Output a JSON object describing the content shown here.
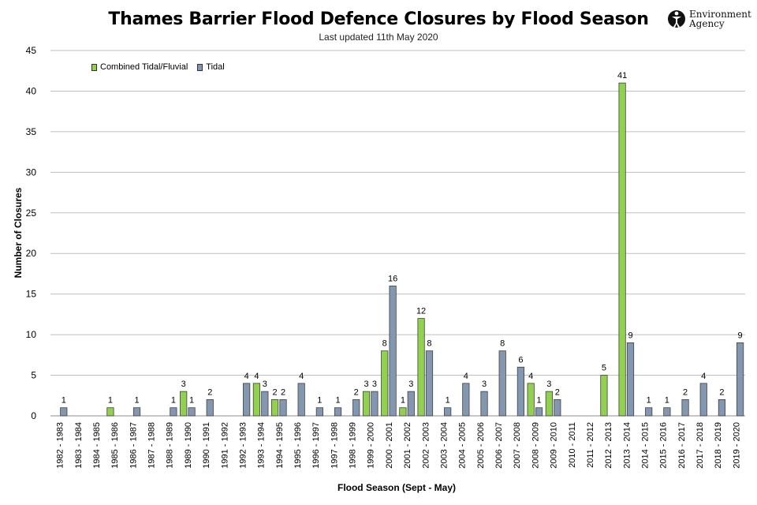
{
  "title": "Thames Barrier Flood Defence Closures by Flood Season",
  "subtitle": "Last updated  11th May 2020",
  "logo": {
    "line1": "Environment",
    "line2": "Agency"
  },
  "colors": {
    "combined": "#92d050",
    "tidal": "#8497b0",
    "grid": "#bfbfbf"
  },
  "chart_data": {
    "type": "bar",
    "xlabel": "Flood Season (Sept - May)",
    "ylabel": "Number of Closures",
    "ylim": [
      0,
      45
    ],
    "yticks": [
      0,
      5,
      10,
      15,
      20,
      25,
      30,
      35,
      40,
      45
    ],
    "grid": true,
    "legend": "top-left",
    "categories": [
      "1982 - 1983",
      "1983 - 1984",
      "1984 - 1985",
      "1985 - 1986",
      "1986 - 1987",
      "1987 - 1988",
      "1988 - 1989",
      "1989 - 1990",
      "1990 - 1991",
      "1991 - 1992",
      "1992 - 1993",
      "1993 - 1994",
      "1994 - 1995",
      "1995 - 1996",
      "1996 - 1997",
      "1997 - 1998",
      "1998 - 1999",
      "1999 - 2000",
      "2000 - 2001",
      "2001 - 2002",
      "2002 - 2003",
      "2003 - 2004",
      "2004 - 2005",
      "2005 - 2006",
      "2006 - 2007",
      "2007 - 2008",
      "2008 - 2009",
      "2009 - 2010",
      "2010 - 2011",
      "2011 - 2012",
      "2012 - 2013",
      "2013 - 2014",
      "2014 - 2015",
      "2015 - 2016",
      "2016 - 2017",
      "2017 - 2018",
      "2018 - 2019",
      "2019 - 2020"
    ],
    "series": [
      {
        "name": "Combined Tidal/Fluvial",
        "values": [
          0,
          0,
          0,
          1,
          0,
          0,
          0,
          3,
          0,
          0,
          0,
          4,
          2,
          0,
          0,
          0,
          0,
          3,
          8,
          1,
          12,
          0,
          0,
          0,
          0,
          0,
          4,
          3,
          0,
          0,
          5,
          41,
          0,
          0,
          0,
          0,
          0,
          0
        ]
      },
      {
        "name": "Tidal",
        "values": [
          1,
          0,
          0,
          0,
          1,
          0,
          1,
          1,
          2,
          0,
          4,
          3,
          2,
          4,
          1,
          1,
          2,
          3,
          16,
          3,
          8,
          1,
          4,
          3,
          8,
          6,
          1,
          2,
          0,
          0,
          0,
          9,
          1,
          1,
          2,
          4,
          2,
          9
        ]
      }
    ]
  }
}
